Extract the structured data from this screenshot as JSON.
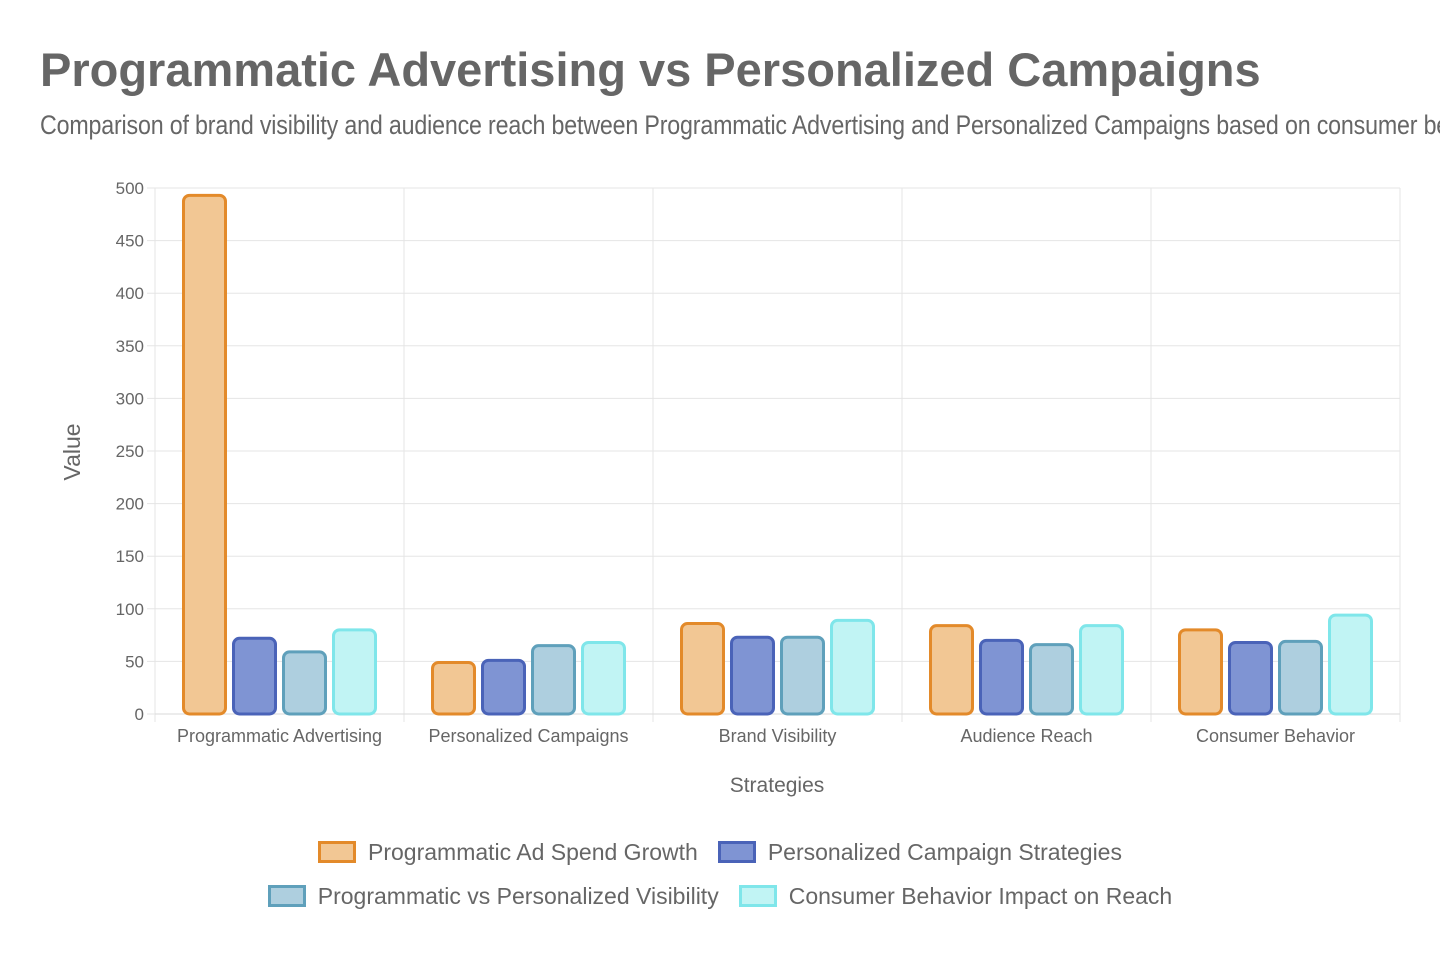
{
  "title": "Programmatic Advertising vs Personalized Campaigns",
  "subtitle": "Comparison of brand visibility and audience reach between Programmatic Advertising and Personalized Campaigns based on consumer behavior",
  "chart_data": {
    "type": "bar",
    "title": "Programmatic Advertising vs Personalized Campaigns",
    "subtitle": "Comparison of brand visibility and audience reach between Programmatic Advertising and Personalized Campaigns based on consumer behavior",
    "xlabel": "Strategies",
    "ylabel": "Value",
    "ylim": [
      0,
      500
    ],
    "yticks": [
      0,
      50,
      100,
      150,
      200,
      250,
      300,
      350,
      400,
      450,
      500
    ],
    "grid": true,
    "legend_position": "bottom",
    "categories": [
      "Programmatic Advertising",
      "Personalized Campaigns",
      "Brand Visibility",
      "Audience Reach",
      "Consumer Behavior"
    ],
    "series": [
      {
        "name": "Programmatic Ad Spend Growth",
        "values": [
          493,
          49,
          86,
          84,
          80
        ],
        "fill": "#f2c794",
        "stroke": "#e38a2a"
      },
      {
        "name": "Personalized Campaign Strategies",
        "values": [
          72,
          51,
          73,
          70,
          68
        ],
        "fill": "#7f94d3",
        "stroke": "#4a63b8"
      },
      {
        "name": "Programmatic vs Personalized Visibility",
        "values": [
          59,
          65,
          73,
          66,
          69
        ],
        "fill": "#aecfdf",
        "stroke": "#5fa0bb"
      },
      {
        "name": "Consumer Behavior Impact on Reach",
        "values": [
          80,
          68,
          89,
          84,
          94
        ],
        "fill": "#c1f4f4",
        "stroke": "#7fe6ea"
      }
    ]
  }
}
